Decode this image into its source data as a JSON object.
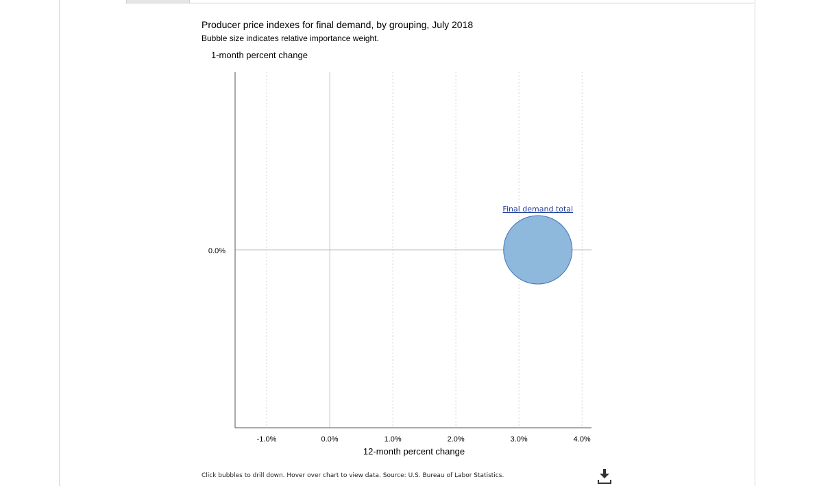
{
  "page": {
    "title": "Producer price indexes for final demand, by grouping, July 2018",
    "subtitle": "Bubble size indicates relative importance weight.",
    "footer": "Click bubbles to drill down. Hover over chart to view data. Source: U.S. Bureau of Labor Statistics.",
    "download_icon": "download-icon"
  },
  "chart_data": {
    "type": "scatter",
    "title": "Producer price indexes for final demand, by grouping, July 2018",
    "subtitle": "Bubble size indicates relative importance weight.",
    "xlabel": "12-month percent change",
    "ylabel": "1-month percent change",
    "xlim": [
      -1.5,
      4.15
    ],
    "ylim": [
      -0.1,
      0.1
    ],
    "x_ticks": [
      {
        "value": -1.0,
        "label": "-1.0%"
      },
      {
        "value": 0.0,
        "label": "0.0%"
      },
      {
        "value": 1.0,
        "label": "1.0%"
      },
      {
        "value": 2.0,
        "label": "2.0%"
      },
      {
        "value": 3.0,
        "label": "3.0%"
      },
      {
        "value": 4.0,
        "label": "4.0%"
      }
    ],
    "y_ticks": [
      {
        "value": 0.0,
        "label": "0.0%"
      }
    ],
    "grid": {
      "x": true,
      "y": false
    },
    "series": [
      {
        "points": [
          {
            "label": "Final demand total",
            "x": 3.3,
            "y": 0.0,
            "size": 100,
            "color": "#8fb8dd",
            "stroke": "#3f74b3",
            "link_color": "#1f3f9a"
          }
        ]
      }
    ]
  }
}
